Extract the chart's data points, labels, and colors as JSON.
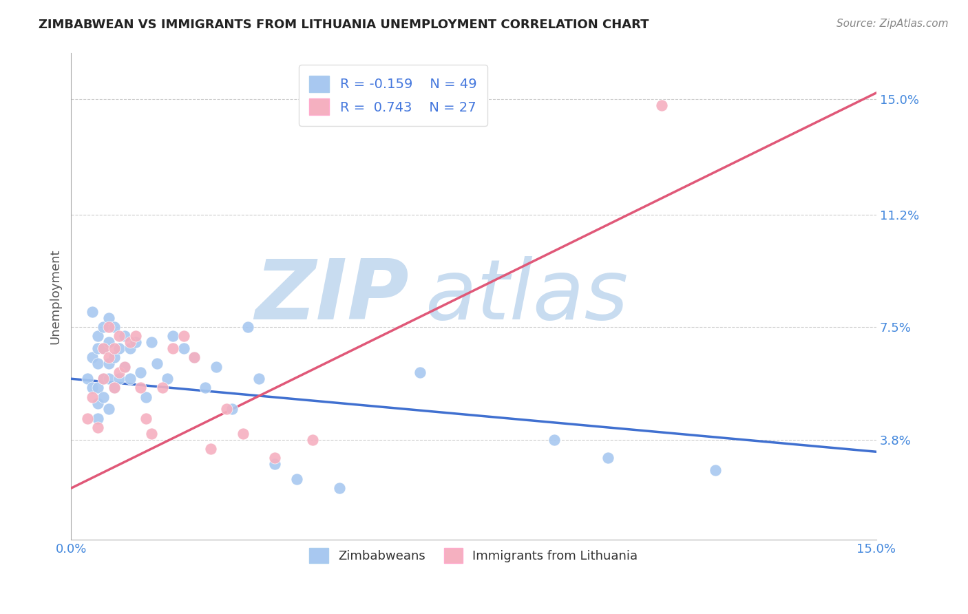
{
  "title": "ZIMBABWEAN VS IMMIGRANTS FROM LITHUANIA UNEMPLOYMENT CORRELATION CHART",
  "source": "Source: ZipAtlas.com",
  "ylabel": "Unemployment",
  "xlim": [
    0.0,
    0.15
  ],
  "ylim": [
    0.005,
    0.165
  ],
  "yticks": [
    0.038,
    0.075,
    0.112,
    0.15
  ],
  "ytick_labels": [
    "3.8%",
    "7.5%",
    "11.2%",
    "15.0%"
  ],
  "xticks": [
    0.0,
    0.025,
    0.05,
    0.075,
    0.1,
    0.125,
    0.15
  ],
  "xtick_labels": [
    "0.0%",
    "",
    "",
    "",
    "",
    "",
    "15.0%"
  ],
  "blue_R": -0.159,
  "blue_N": 49,
  "pink_R": 0.743,
  "pink_N": 27,
  "blue_color": "#A8C8F0",
  "pink_color": "#F5B0C0",
  "blue_line_color": "#4070D0",
  "pink_line_color": "#E05878",
  "grid_color": "#CCCCCC",
  "background_color": "#FFFFFF",
  "watermark_zip": "ZIP",
  "watermark_atlas": "atlas",
  "watermark_color": "#C8DCF0",
  "blue_scatter_x": [
    0.003,
    0.004,
    0.004,
    0.004,
    0.005,
    0.005,
    0.005,
    0.005,
    0.005,
    0.005,
    0.006,
    0.006,
    0.006,
    0.006,
    0.007,
    0.007,
    0.007,
    0.007,
    0.007,
    0.008,
    0.008,
    0.008,
    0.009,
    0.009,
    0.01,
    0.01,
    0.011,
    0.011,
    0.012,
    0.013,
    0.014,
    0.015,
    0.016,
    0.018,
    0.019,
    0.021,
    0.023,
    0.025,
    0.027,
    0.03,
    0.033,
    0.035,
    0.038,
    0.042,
    0.05,
    0.065,
    0.09,
    0.1,
    0.12
  ],
  "blue_scatter_y": [
    0.058,
    0.065,
    0.055,
    0.08,
    0.072,
    0.068,
    0.063,
    0.055,
    0.05,
    0.045,
    0.075,
    0.068,
    0.058,
    0.052,
    0.078,
    0.07,
    0.063,
    0.058,
    0.048,
    0.075,
    0.065,
    0.055,
    0.068,
    0.058,
    0.072,
    0.062,
    0.068,
    0.058,
    0.07,
    0.06,
    0.052,
    0.07,
    0.063,
    0.058,
    0.072,
    0.068,
    0.065,
    0.055,
    0.062,
    0.048,
    0.075,
    0.058,
    0.03,
    0.025,
    0.022,
    0.06,
    0.038,
    0.032,
    0.028
  ],
  "pink_scatter_x": [
    0.003,
    0.004,
    0.005,
    0.006,
    0.006,
    0.007,
    0.007,
    0.008,
    0.008,
    0.009,
    0.009,
    0.01,
    0.011,
    0.012,
    0.013,
    0.014,
    0.015,
    0.017,
    0.019,
    0.021,
    0.023,
    0.026,
    0.029,
    0.032,
    0.038,
    0.045,
    0.11
  ],
  "pink_scatter_y": [
    0.045,
    0.052,
    0.042,
    0.068,
    0.058,
    0.075,
    0.065,
    0.068,
    0.055,
    0.072,
    0.06,
    0.062,
    0.07,
    0.072,
    0.055,
    0.045,
    0.04,
    0.055,
    0.068,
    0.072,
    0.065,
    0.035,
    0.048,
    0.04,
    0.032,
    0.038,
    0.148
  ],
  "blue_trend_x": [
    0.0,
    0.15
  ],
  "blue_trend_y": [
    0.058,
    0.034
  ],
  "pink_trend_x": [
    0.0,
    0.15
  ],
  "pink_trend_y": [
    0.022,
    0.152
  ]
}
